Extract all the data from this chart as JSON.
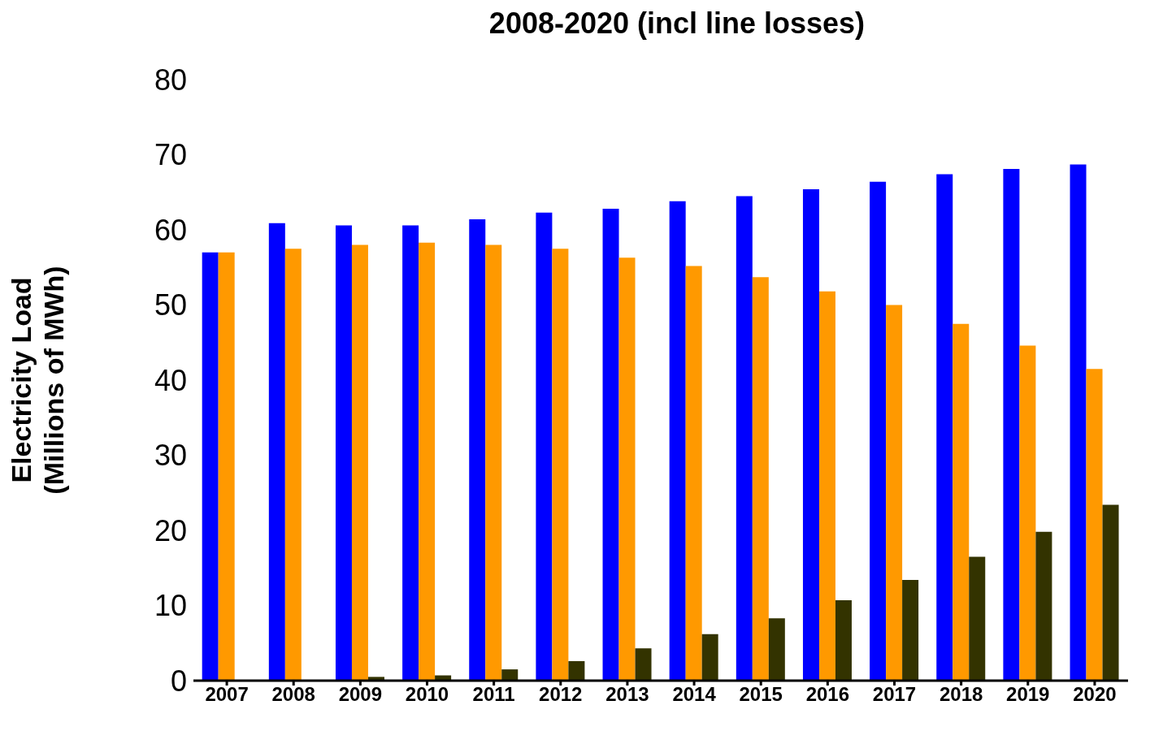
{
  "chart_data": {
    "type": "bar",
    "title": "2008-2020 (incl line losses)",
    "ylabel": "Electricity Load\n(Millions of MWh)",
    "categories": [
      "2007",
      "2008",
      "2009",
      "2010",
      "2011",
      "2012",
      "2013",
      "2014",
      "2015",
      "2016",
      "2017",
      "2018",
      "2019",
      "2020"
    ],
    "series": [
      {
        "color": "#0000ff",
        "values": [
          57.0,
          60.9,
          60.6,
          60.6,
          61.4,
          62.3,
          62.8,
          63.8,
          64.5,
          65.4,
          66.4,
          67.4,
          68.1,
          68.7
        ]
      },
      {
        "color": "#ff9900",
        "values": [
          57.0,
          57.5,
          58.0,
          58.3,
          58.0,
          57.5,
          56.3,
          55.2,
          53.7,
          51.8,
          50.0,
          47.5,
          44.6,
          41.5
        ]
      },
      {
        "color": "#333300",
        "values": [
          0,
          0,
          0.5,
          0.7,
          1.5,
          2.6,
          4.3,
          6.2,
          8.3,
          10.7,
          13.4,
          16.5,
          19.8,
          23.4
        ]
      }
    ],
    "ylim": [
      0,
      80
    ],
    "yticks": [
      0,
      10,
      20,
      30,
      40,
      50,
      60,
      70,
      80
    ],
    "grid": false,
    "legend": false
  }
}
